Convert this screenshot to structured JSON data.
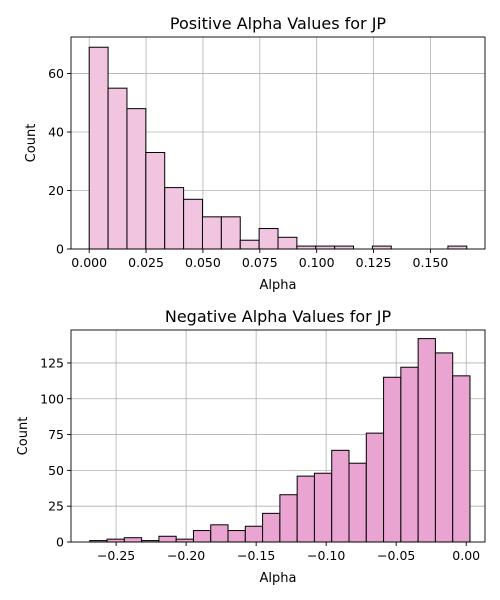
{
  "chart_data": [
    {
      "type": "bar",
      "title": "Positive Alpha Values for JP",
      "xlabel": "Alpha",
      "ylabel": "Count",
      "xlim": [
        -0.008,
        0.174
      ],
      "ylim": [
        0,
        72.5
      ],
      "xticks": [
        0.0,
        0.025,
        0.05,
        0.075,
        0.1,
        0.125,
        0.15
      ],
      "xtick_labels": [
        "0.000",
        "0.025",
        "0.050",
        "0.075",
        "0.100",
        "0.125",
        "0.150"
      ],
      "yticks": [
        0,
        20,
        40,
        60
      ],
      "ytick_labels": [
        "0",
        "20",
        "40",
        "60"
      ],
      "bin_start": 0.0,
      "bin_width": 0.0083,
      "values": [
        69,
        55,
        48,
        33,
        21,
        17,
        11,
        11,
        3,
        7,
        4,
        1,
        1,
        1,
        0,
        1,
        0,
        0,
        0,
        1
      ],
      "grid": true,
      "bar_color": "#f1c4e0",
      "edge_color": "#000000"
    },
    {
      "type": "bar",
      "title": "Negative Alpha Values for JP",
      "xlabel": "Alpha",
      "ylabel": "Count",
      "xlim": [
        -0.2822,
        0.0134
      ],
      "ylim": [
        0,
        148
      ],
      "xticks": [
        -0.25,
        -0.2,
        -0.15,
        -0.1,
        -0.05,
        0.0
      ],
      "xtick_labels": [
        "−0.25",
        "−0.20",
        "−0.15",
        "−0.10",
        "−0.05",
        "0.00"
      ],
      "yticks": [
        0,
        25,
        50,
        75,
        100,
        125
      ],
      "ytick_labels": [
        "0",
        "25",
        "50",
        "75",
        "100",
        "125"
      ],
      "bin_start": -0.2688,
      "bin_width": 0.01234,
      "values": [
        1,
        2,
        3,
        1,
        4,
        2,
        8,
        12,
        8,
        11,
        20,
        33,
        46,
        48,
        64,
        55,
        76,
        115,
        122,
        142,
        132,
        116
      ],
      "grid": true,
      "bar_color": "#e9a4d1",
      "edge_color": "#000000"
    }
  ]
}
